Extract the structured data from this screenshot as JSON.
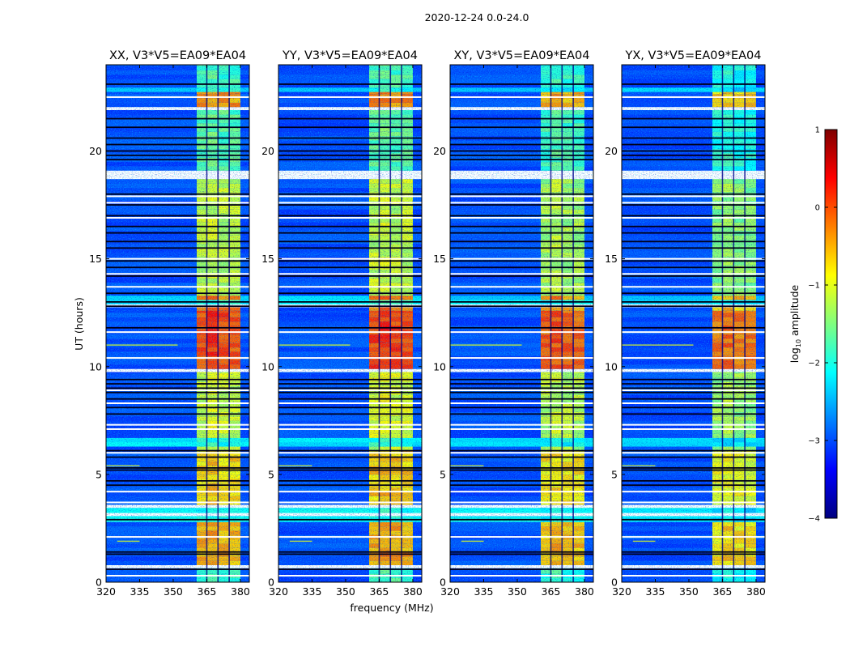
{
  "chart_data": {
    "type": "heatmap",
    "suptitle": "2020-12-24 0.0-24.0",
    "xlabel": "frequency (MHz)",
    "ylabel": "UT (hours)",
    "xlim": [
      320,
      384
    ],
    "ylim": [
      0,
      24
    ],
    "xticks": [
      320,
      335,
      350,
      365,
      380
    ],
    "xtick_labels": [
      "320",
      "335",
      "350",
      "365",
      "380"
    ],
    "yticks": [
      0,
      5,
      10,
      15,
      20
    ],
    "ytick_labels": [
      "0",
      "5",
      "10",
      "15",
      "20"
    ],
    "panels": [
      {
        "title": "XX, V3*V5=EA09*EA04",
        "band_offset": 0.0
      },
      {
        "title": "YY, V3*V5=EA09*EA04",
        "band_offset": 0.05
      },
      {
        "title": "XY, V3*V5=EA09*EA04",
        "band_offset": -0.1
      },
      {
        "title": "YX, V3*V5=EA09*EA04",
        "band_offset": -0.25
      }
    ],
    "colorbar": {
      "label_prefix": "log",
      "label_sub": "10",
      "label_suffix": " amplitude",
      "range": [
        -4,
        1
      ],
      "ticks": [
        -4,
        -3,
        -2,
        -1,
        0,
        1
      ],
      "tick_labels": [
        "−4",
        "−3",
        "−2",
        "−1",
        "0",
        "1"
      ],
      "colormap": "jet"
    },
    "background_level": -3.0,
    "rfi_band": {
      "start_mhz": 360.5,
      "end_mhz": 380.0,
      "gaps_mhz": [
        365,
        370,
        375
      ]
    },
    "segments": [
      {
        "t0": 0.0,
        "t1": 0.65,
        "bg": -3.0,
        "band": -1.8
      },
      {
        "t0": 0.65,
        "t1": 0.8,
        "flagged": true
      },
      {
        "t0": 0.8,
        "t1": 2.8,
        "bg": -3.0,
        "band": -0.5
      },
      {
        "t0": 2.8,
        "t1": 3.07,
        "bg": -2.1,
        "band": -2.0
      },
      {
        "t0": 3.07,
        "t1": 3.22,
        "flagged": true
      },
      {
        "t0": 3.22,
        "t1": 3.45,
        "bg": -2.1,
        "band": -2.0
      },
      {
        "t0": 3.45,
        "t1": 3.6,
        "flagged": true
      },
      {
        "t0": 3.6,
        "t1": 6.1,
        "bg": -3.0,
        "band": -0.7
      },
      {
        "t0": 6.1,
        "t1": 6.3,
        "bg": -3.0,
        "band": -1.2
      },
      {
        "t0": 6.3,
        "t1": 6.7,
        "bg": -2.2,
        "band": -2.0
      },
      {
        "t0": 6.7,
        "t1": 9.75,
        "bg": -3.0,
        "band": -1.1
      },
      {
        "t0": 9.75,
        "t1": 9.9,
        "flagged": true
      },
      {
        "t0": 9.9,
        "t1": 12.6,
        "bg": -3.0,
        "band": 0.0
      },
      {
        "t0": 12.6,
        "t1": 12.75,
        "bg": -3.0,
        "band": -0.3
      },
      {
        "t0": 12.75,
        "t1": 12.9,
        "flagged": true
      },
      {
        "t0": 12.9,
        "t1": 13.1,
        "bg": -2.2,
        "band": -2.0
      },
      {
        "t0": 13.1,
        "t1": 13.3,
        "bg": -2.3,
        "band": -0.3
      },
      {
        "t0": 13.3,
        "t1": 18.7,
        "bg": -3.0,
        "band": -1.2
      },
      {
        "t0": 18.7,
        "t1": 19.1,
        "flagged": true
      },
      {
        "t0": 19.1,
        "t1": 21.9,
        "bg": -3.0,
        "band": -1.7
      },
      {
        "t0": 21.9,
        "t1": 22.05,
        "flagged": true
      },
      {
        "t0": 22.05,
        "t1": 22.75,
        "bg": -3.0,
        "band": -0.4
      },
      {
        "t0": 22.75,
        "t1": 22.95,
        "bg": -2.3,
        "band": -2.0
      },
      {
        "t0": 22.95,
        "t1": 24.0,
        "bg": -3.0,
        "band": -1.8
      }
    ],
    "flagged_thin_hours": [
      0.3,
      2.1,
      3.7,
      4.2,
      6.0,
      7.1,
      7.3,
      8.3,
      8.9,
      10.4,
      11.6,
      13.7,
      14.3,
      15.0,
      16.9,
      17.6,
      17.9,
      22.5
    ],
    "low_amplitude_hours": [
      0.6,
      1.3,
      1.4,
      2.9,
      4.5,
      4.7,
      5.2,
      5.3,
      5.8,
      6.1,
      7.8,
      8.1,
      8.5,
      8.8,
      9.0,
      9.2,
      9.4,
      11.8,
      12.8,
      13.0,
      13.4,
      14.2,
      14.6,
      14.9,
      15.5,
      15.8,
      16.2,
      16.5,
      17.0,
      17.5,
      18.0,
      19.6,
      19.8,
      20.0,
      20.3,
      20.6,
      21.1,
      21.5,
      23.1
    ],
    "narrowband_lines": [
      {
        "t": 11.0,
        "f0": 320,
        "f1": 352,
        "level": -1.0
      },
      {
        "t": 5.4,
        "f0": 320,
        "f1": 335,
        "level": -1.0
      },
      {
        "t": 1.9,
        "f0": 325,
        "f1": 335,
        "level": -1.0
      }
    ]
  }
}
